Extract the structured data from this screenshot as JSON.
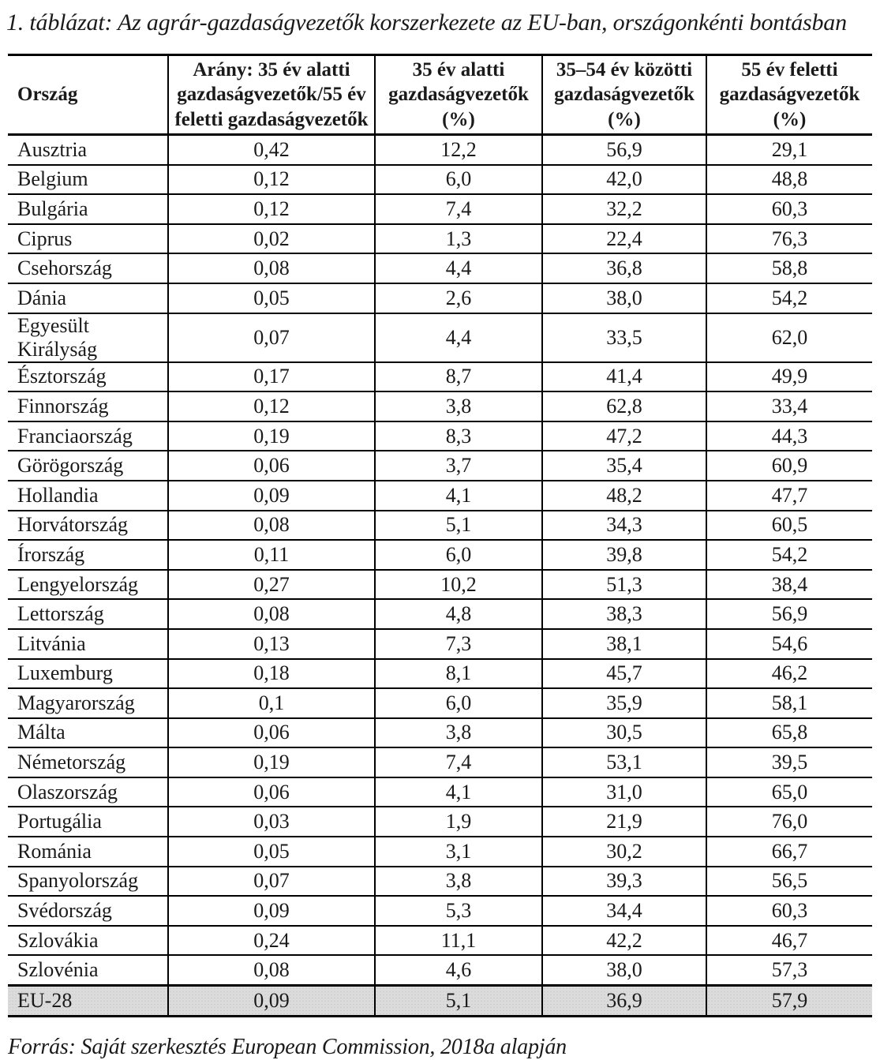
{
  "title": "1. táblázat: Az agrár-gazdaságvezetők korszerkezete az EU-ban, országonkénti bontásban",
  "table": {
    "columns": [
      "Ország",
      "Arány: 35 év alatti\ngazdaságvezetők/55 év\nfeletti gazdaságvezetők",
      "35 év alatti\ngazdaságvezetők\n(%)",
      "35–54 év közötti\ngazdaságvezetők\n(%)",
      "55 év feletti\ngazdaságvezetők\n(%)"
    ],
    "rows": [
      {
        "country": "Ausztria",
        "ratio": "0,42",
        "under35": "12,2",
        "mid35_54": "56,9",
        "over55": "29,1"
      },
      {
        "country": "Belgium",
        "ratio": "0,12",
        "under35": "6,0",
        "mid35_54": "42,0",
        "over55": "48,8"
      },
      {
        "country": "Bulgária",
        "ratio": "0,12",
        "under35": "7,4",
        "mid35_54": "32,2",
        "over55": "60,3"
      },
      {
        "country": "Ciprus",
        "ratio": "0,02",
        "under35": "1,3",
        "mid35_54": "22,4",
        "over55": "76,3"
      },
      {
        "country": "Csehország",
        "ratio": "0,08",
        "under35": "4,4",
        "mid35_54": "36,8",
        "over55": "58,8"
      },
      {
        "country": "Dánia",
        "ratio": "0,05",
        "under35": "2,6",
        "mid35_54": "38,0",
        "over55": "54,2"
      },
      {
        "country": "Egyesült Királyság",
        "ratio": "0,07",
        "under35": "4,4",
        "mid35_54": "33,5",
        "over55": "62,0"
      },
      {
        "country": "Észtország",
        "ratio": "0,17",
        "under35": "8,7",
        "mid35_54": "41,4",
        "over55": "49,9"
      },
      {
        "country": "Finnország",
        "ratio": "0,12",
        "under35": "3,8",
        "mid35_54": "62,8",
        "over55": "33,4"
      },
      {
        "country": "Franciaország",
        "ratio": "0,19",
        "under35": "8,3",
        "mid35_54": "47,2",
        "over55": "44,3"
      },
      {
        "country": "Görögország",
        "ratio": "0,06",
        "under35": "3,7",
        "mid35_54": "35,4",
        "over55": "60,9"
      },
      {
        "country": "Hollandia",
        "ratio": "0,09",
        "under35": "4,1",
        "mid35_54": "48,2",
        "over55": "47,7"
      },
      {
        "country": "Horvátország",
        "ratio": "0,08",
        "under35": "5,1",
        "mid35_54": "34,3",
        "over55": "60,5"
      },
      {
        "country": "Írország",
        "ratio": "0,11",
        "under35": "6,0",
        "mid35_54": "39,8",
        "over55": "54,2"
      },
      {
        "country": "Lengyelország",
        "ratio": "0,27",
        "under35": "10,2",
        "mid35_54": "51,3",
        "over55": "38,4"
      },
      {
        "country": "Lettország",
        "ratio": "0,08",
        "under35": "4,8",
        "mid35_54": "38,3",
        "over55": "56,9"
      },
      {
        "country": "Litvánia",
        "ratio": "0,13",
        "under35": "7,3",
        "mid35_54": "38,1",
        "over55": "54,6"
      },
      {
        "country": "Luxemburg",
        "ratio": "0,18",
        "under35": "8,1",
        "mid35_54": "45,7",
        "over55": "46,2"
      },
      {
        "country": "Magyarország",
        "ratio": "0,1",
        "under35": "6,0",
        "mid35_54": "35,9",
        "over55": "58,1"
      },
      {
        "country": "Málta",
        "ratio": "0,06",
        "under35": "3,8",
        "mid35_54": "30,5",
        "over55": "65,8"
      },
      {
        "country": "Németország",
        "ratio": "0,19",
        "under35": "7,4",
        "mid35_54": "53,1",
        "over55": "39,5"
      },
      {
        "country": "Olaszország",
        "ratio": "0,06",
        "under35": "4,1",
        "mid35_54": "31,0",
        "over55": "65,0"
      },
      {
        "country": "Portugália",
        "ratio": "0,03",
        "under35": "1,9",
        "mid35_54": "21,9",
        "over55": "76,0"
      },
      {
        "country": "Románia",
        "ratio": "0,05",
        "under35": "3,1",
        "mid35_54": "30,2",
        "over55": "66,7"
      },
      {
        "country": "Spanyolország",
        "ratio": "0,07",
        "under35": "3,8",
        "mid35_54": "39,3",
        "over55": "56,5"
      },
      {
        "country": "Svédország",
        "ratio": "0,09",
        "under35": "5,3",
        "mid35_54": "34,4",
        "over55": "60,3"
      },
      {
        "country": "Szlovákia",
        "ratio": "0,24",
        "under35": "11,1",
        "mid35_54": "42,2",
        "over55": "46,7"
      },
      {
        "country": "Szlovénia",
        "ratio": "0,08",
        "under35": "4,6",
        "mid35_54": "38,0",
        "over55": "57,3"
      }
    ],
    "total_row": {
      "country": "EU-28",
      "ratio": "0,09",
      "under35": "5,1",
      "mid35_54": "36,9",
      "over55": "57,9"
    },
    "total_row_bg": "#dbdbdb"
  },
  "footer": "Forrás: Saját szerkesztés European Commission, 2018a alapján"
}
